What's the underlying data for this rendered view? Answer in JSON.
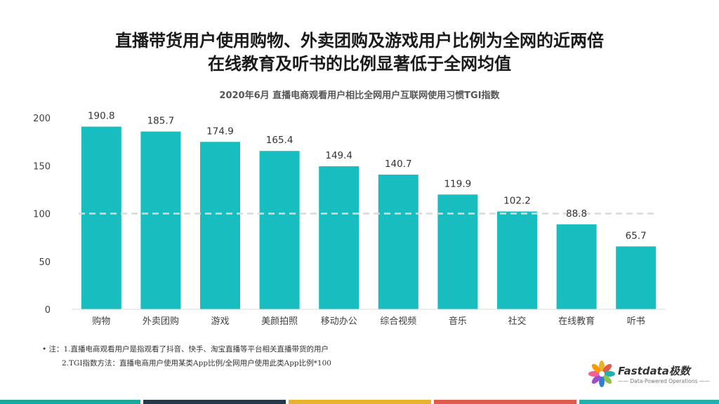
{
  "header": {
    "title_line1": "直播带货用户使用购物、外卖团购及游戏用户比例为全网的近两倍",
    "title_line2": "在线教育及听书的比例显著低于全网均值"
  },
  "chart_data": {
    "type": "bar",
    "title": "2020年6月 直播电商观看用户相比全网用户互联网使用习惯TGI指数",
    "categories": [
      "购物",
      "外卖团购",
      "游戏",
      "美颜拍照",
      "移动办公",
      "综合视频",
      "音乐",
      "社交",
      "在线教育",
      "听书"
    ],
    "values": [
      190.8,
      185.7,
      174.9,
      165.4,
      149.4,
      140.7,
      119.9,
      102.2,
      88.8,
      65.7
    ],
    "data_labels": [
      "190.8",
      "185.7",
      "174.9",
      "165.4",
      "149.4",
      "140.7",
      "119.9",
      "102.2",
      "88.8",
      "65.7"
    ],
    "ylim": [
      0,
      200
    ],
    "yticks": [
      "0",
      "50",
      "100",
      "150",
      "200"
    ],
    "reference_line": 100,
    "bar_color": "#18BDC0",
    "reference_color": "#D9D9D9",
    "grid": false,
    "xlabel": "",
    "ylabel": ""
  },
  "notes": {
    "line1": "• 注：1.直播电商观看用户是指观看了抖音、快手、淘宝直播等平台相关直播带货的用户",
    "line2": "2.TGI指数方法：直播电商用户使用某类App比例/全网用户使用此类App比例*100"
  },
  "logo": {
    "brand": "Fastdata极数",
    "tagline": "—— Data-Powered Operations ——"
  },
  "colors": {
    "strip": [
      "#16A99E",
      "#243A4A",
      "#E9B22D",
      "#E05A4E",
      "#1FB0B0"
    ]
  }
}
